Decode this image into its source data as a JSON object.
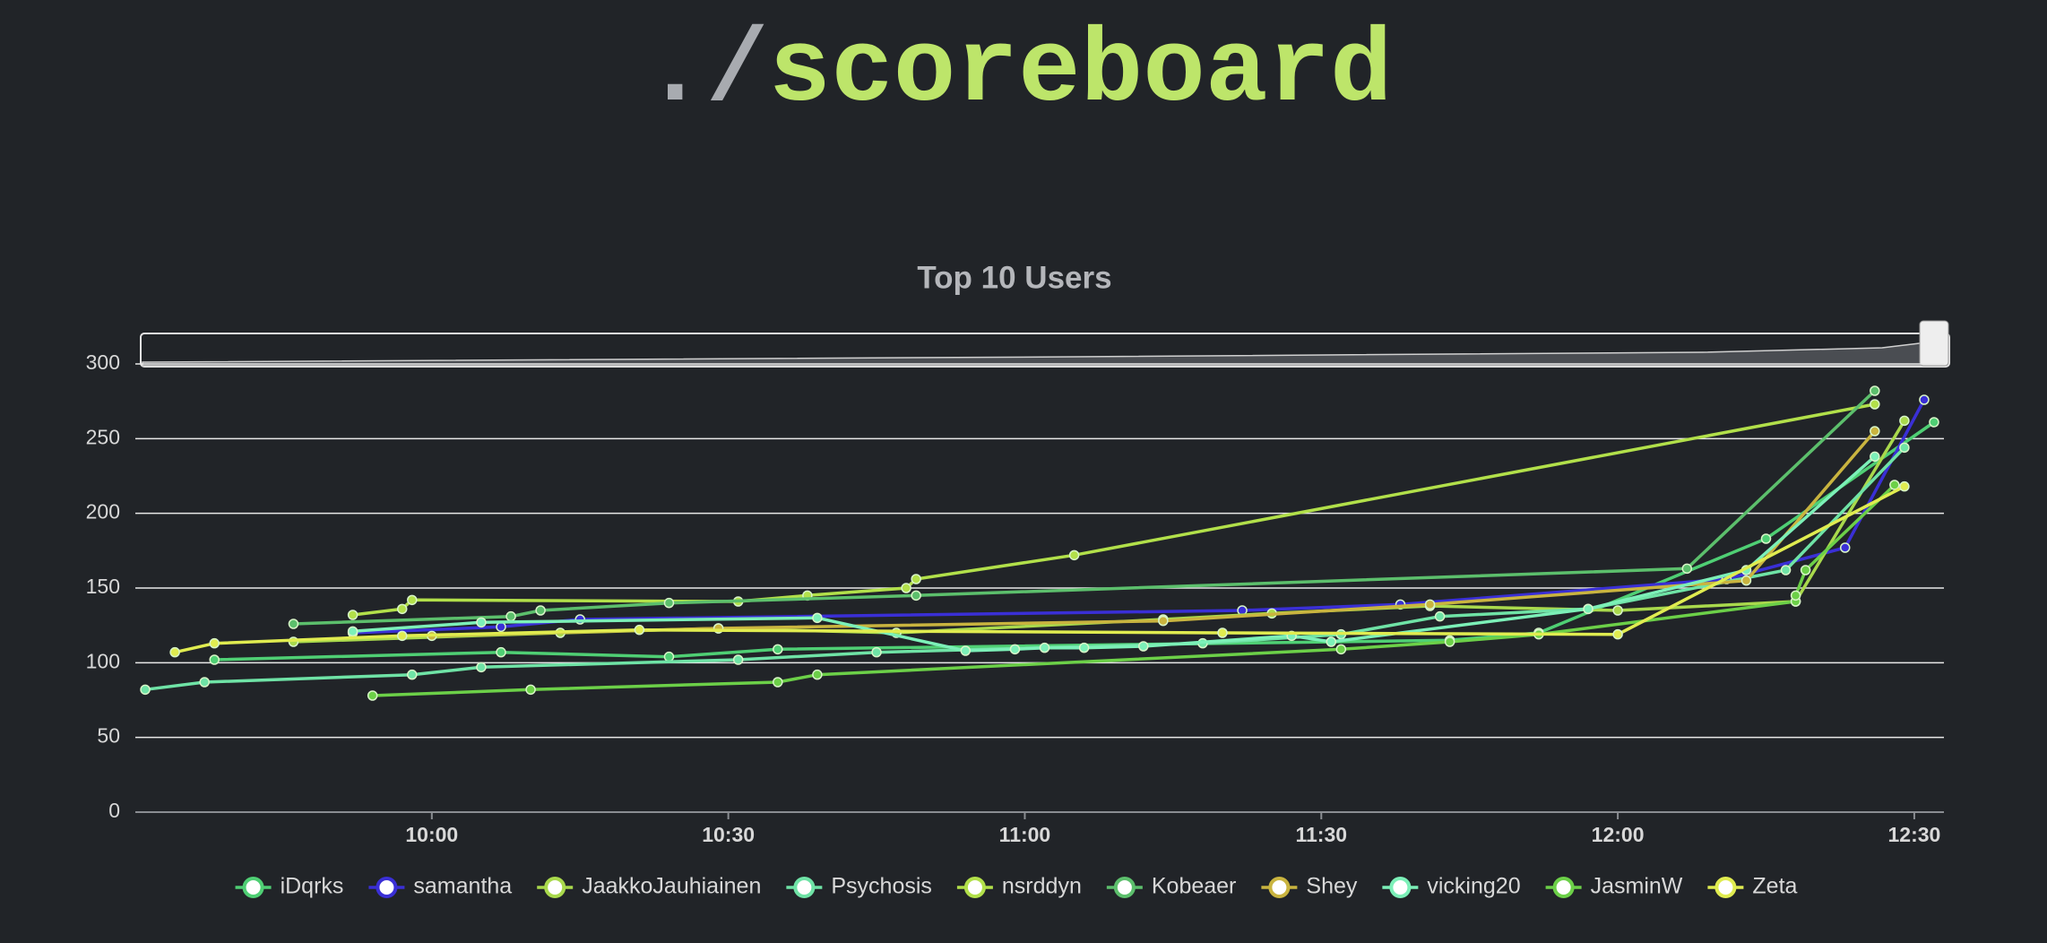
{
  "header": {
    "prefix": "./",
    "name": "scoreboard"
  },
  "chart_data": {
    "type": "line",
    "title": "Top 10 Users",
    "xlim": [
      "09:30",
      "12:33"
    ],
    "xticks": [
      "10:00",
      "10:30",
      "11:00",
      "11:30",
      "12:00",
      "12:30"
    ],
    "ylim": [
      0,
      300
    ],
    "yticks": [
      0,
      50,
      100,
      150,
      200,
      250,
      300
    ],
    "grid": true,
    "legend": "bottom",
    "series": [
      {
        "name": "iDqrks",
        "color": "#4fcf74",
        "x": [
          "09:38",
          "10:07",
          "10:24",
          "10:35",
          "11:43",
          "11:52",
          "12:15",
          "12:32"
        ],
        "values": [
          102,
          107,
          104,
          109,
          115,
          120,
          183,
          261
        ]
      },
      {
        "name": "samantha",
        "color": "#3a2fd6",
        "x": [
          "09:52",
          "10:07",
          "10:15",
          "11:22",
          "11:38",
          "12:11",
          "12:23",
          "12:31"
        ],
        "values": [
          120,
          124,
          129,
          135,
          139,
          156,
          177,
          276
        ]
      },
      {
        "name": "JaakkoJauhiainen",
        "color": "#a9d94c",
        "x": [
          "09:46",
          "10:13",
          "10:29",
          "10:47",
          "11:14",
          "11:25",
          "11:41",
          "12:00",
          "12:18",
          "12:29"
        ],
        "values": [
          114,
          120,
          123,
          120,
          129,
          133,
          138,
          135,
          141,
          262
        ]
      },
      {
        "name": "Psychosis",
        "color": "#6fe3a6",
        "x": [
          "09:31",
          "09:37",
          "09:58",
          "10:05",
          "10:31",
          "10:45",
          "11:18",
          "11:32",
          "11:42",
          "11:57",
          "12:17",
          "12:29"
        ],
        "values": [
          82,
          87,
          92,
          97,
          102,
          107,
          113,
          119,
          131,
          136,
          162,
          244
        ]
      },
      {
        "name": "nsrddyn",
        "color": "#b2e04a",
        "x": [
          "09:52",
          "09:57",
          "09:58",
          "10:31",
          "10:38",
          "10:48",
          "10:49",
          "11:05",
          "12:26"
        ],
        "values": [
          132,
          136,
          142,
          141,
          145,
          150,
          156,
          172,
          273
        ]
      },
      {
        "name": "Kobeaer",
        "color": "#5cbf6c",
        "x": [
          "09:46",
          "10:08",
          "10:11",
          "10:24",
          "10:49",
          "12:07",
          "12:26"
        ],
        "values": [
          126,
          131,
          135,
          140,
          145,
          163,
          282
        ]
      },
      {
        "name": "Shey",
        "color": "#c9b43f",
        "x": [
          "10:00",
          "10:29",
          "11:14",
          "11:41",
          "12:13",
          "12:26"
        ],
        "values": [
          118,
          123,
          128,
          139,
          155,
          255
        ]
      },
      {
        "name": "vicking20",
        "color": "#7cf0b8",
        "x": [
          "09:52",
          "10:05",
          "10:39",
          "10:54",
          "10:59",
          "11:02",
          "11:06",
          "11:12",
          "11:27",
          "11:31",
          "11:57",
          "12:13",
          "12:26"
        ],
        "values": [
          121,
          127,
          130,
          108,
          109,
          110,
          110,
          111,
          118,
          114,
          136,
          162,
          238
        ]
      },
      {
        "name": "JasminW",
        "color": "#6cd048",
        "x": [
          "09:54",
          "10:10",
          "10:35",
          "10:39",
          "11:32",
          "11:43",
          "11:52",
          "12:18",
          "12:18",
          "12:19",
          "12:28"
        ],
        "values": [
          78,
          82,
          87,
          92,
          109,
          114,
          119,
          141,
          145,
          162,
          219
        ]
      },
      {
        "name": "Zeta",
        "color": "#e0ec50",
        "x": [
          "09:34",
          "09:38",
          "09:57",
          "10:21",
          "11:20",
          "12:00",
          "12:29"
        ],
        "values": [
          107,
          113,
          118,
          122,
          120,
          119,
          218
        ]
      }
    ]
  }
}
